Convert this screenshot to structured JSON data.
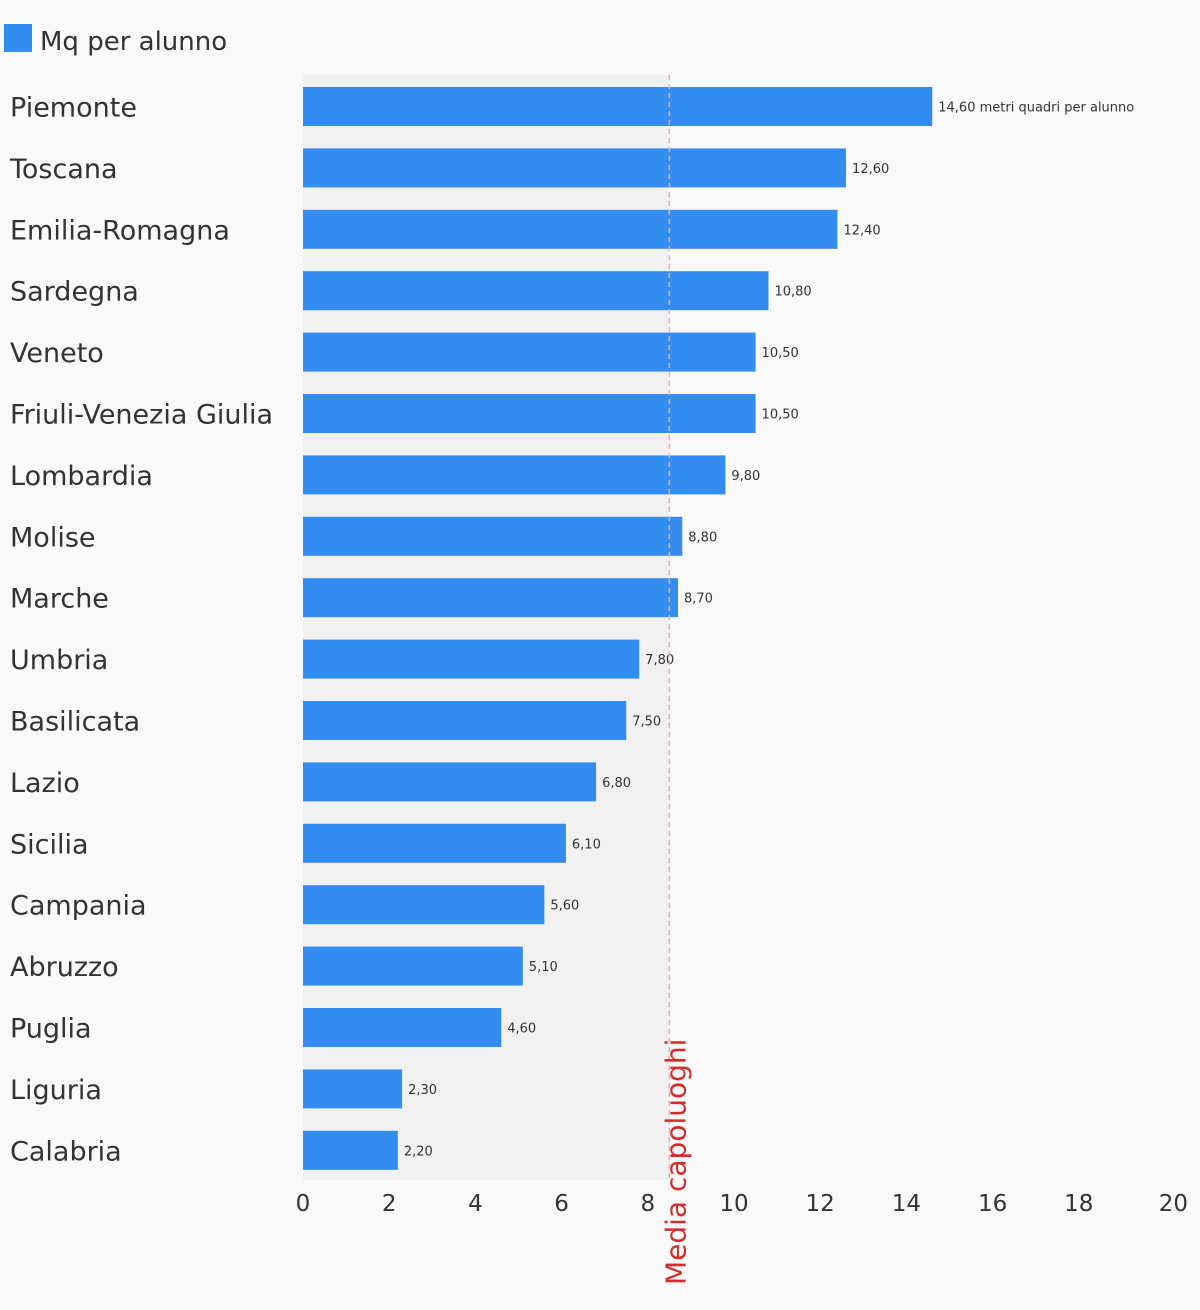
{
  "colors": {
    "bar": "#338cef",
    "plot_background": "#f1f1f1",
    "page_background": "#f9f9f9",
    "reference_line": "#f4a9a9",
    "reference_label": "#d42b2b",
    "text": "#333333"
  },
  "chart_data": {
    "type": "bar",
    "orientation": "horizontal",
    "title": "",
    "xlabel": "",
    "ylabel": "",
    "xlim": [
      0,
      20
    ],
    "x_ticks": [
      0,
      2,
      4,
      6,
      8,
      10,
      12,
      14,
      16,
      18,
      20
    ],
    "grid": false,
    "legend_position": "top-left",
    "categories": [
      "Piemonte",
      "Toscana",
      "Emilia-Romagna",
      "Sardegna",
      "Veneto",
      "Friuli-Venezia Giulia",
      "Lombardia",
      "Molise",
      "Marche",
      "Umbria",
      "Basilicata",
      "Lazio",
      "Sicilia",
      "Campania",
      "Abruzzo",
      "Puglia",
      "Liguria",
      "Calabria"
    ],
    "series": [
      {
        "name": "Mq per alunno",
        "values": [
          14.6,
          12.6,
          12.4,
          10.8,
          10.5,
          10.5,
          9.8,
          8.8,
          8.7,
          7.8,
          7.5,
          6.8,
          6.1,
          5.6,
          5.1,
          4.6,
          2.3,
          2.2
        ]
      }
    ],
    "data_labels": [
      "14,60 metri quadri per alunno",
      "12,60",
      "12,40",
      "10,80",
      "10,50",
      "10,50",
      "9,80",
      "8,80",
      "8,70",
      "7,80",
      "7,50",
      "6,80",
      "6,10",
      "5,60",
      "5,10",
      "4,60",
      "2,30",
      "2,20"
    ],
    "reference_line": {
      "value": 8.5,
      "label": "Media capoluoghi"
    }
  }
}
